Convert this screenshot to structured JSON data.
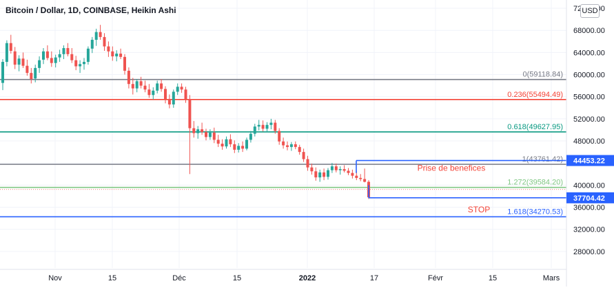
{
  "header": {
    "title": "Bitcoin / Dollar, 1D, COINBASE, Heikin Ashi",
    "currency": "USD"
  },
  "colors": {
    "up": "#26a69a",
    "down": "#ef5350",
    "grid": "#f0f3fa",
    "axis_text": "#131722",
    "fib_0": "#787b86",
    "fib_0236": "#f44336",
    "fib_0618": "#089981",
    "fib_1": "#787b86",
    "fib_1272": "#81c784",
    "fib_1618": "#2962ff",
    "tp_line": "#2962ff",
    "stop_line": "#2962ff",
    "label_bg": "#2962ff",
    "annotation_red": "#f44336"
  },
  "chart_data": {
    "type": "candlestick",
    "style": "Heikin Ashi",
    "x_ticks": [
      "Nov",
      "15",
      "Déc",
      "15",
      "2022",
      "17",
      "Févr",
      "15",
      "Mars"
    ],
    "y_ticks": [
      "72000.00",
      "68000.00",
      "64000.00",
      "60000.00",
      "56000.00",
      "52000.00",
      "48000.00",
      "44000.00",
      "40000.00",
      "36000.00",
      "32000.00",
      "28000.00"
    ],
    "y_range": [
      25000,
      73500
    ],
    "grid": true,
    "fib_levels": [
      {
        "label": "0(59118.84)",
        "value": 59118.84,
        "color_key": "fib_0"
      },
      {
        "label": "0.236(55494.49)",
        "value": 55494.49,
        "color_key": "fib_0236"
      },
      {
        "label": "0.618(49627.95)",
        "value": 49627.95,
        "color_key": "fib_0618"
      },
      {
        "label": "1(43761.42)",
        "value": 43761.42,
        "color_key": "fib_1"
      },
      {
        "label": "1.272(39584.20)",
        "value": 39584.2,
        "color_key": "fib_1272"
      },
      {
        "label": "1.618(34270.53)",
        "value": 34270.53,
        "color_key": "fib_1618"
      }
    ],
    "price_labels": [
      {
        "text": "44453.22",
        "value": 44453.22
      },
      {
        "text": "37704.42",
        "value": 37704.42
      }
    ],
    "annotations": [
      {
        "text": "Prise de benefices",
        "value": 43100
      },
      {
        "text": "STOP",
        "value": 35600
      }
    ],
    "candles": [
      [
        58500,
        62800,
        57200,
        62300
      ],
      [
        62300,
        66200,
        61500,
        65700
      ],
      [
        65700,
        67200,
        63800,
        64300
      ],
      [
        64200,
        65000,
        61000,
        61800
      ],
      [
        61800,
        63500,
        60600,
        62900
      ],
      [
        62900,
        64000,
        61200,
        61600
      ],
      [
        61600,
        62700,
        59800,
        60300
      ],
      [
        60300,
        61200,
        58400,
        59200
      ],
      [
        59300,
        61800,
        58600,
        61200
      ],
      [
        61200,
        63300,
        60300,
        62600
      ],
      [
        62700,
        64800,
        61900,
        64200
      ],
      [
        64200,
        65300,
        62600,
        63000
      ],
      [
        63000,
        64200,
        61400,
        62100
      ],
      [
        62100,
        63600,
        61300,
        63100
      ],
      [
        63100,
        64500,
        62300,
        63700
      ],
      [
        63700,
        65300,
        62800,
        64800
      ],
      [
        64800,
        65700,
        63300,
        63700
      ],
      [
        63700,
        64800,
        62100,
        62600
      ],
      [
        62600,
        63400,
        60800,
        61500
      ],
      [
        61500,
        62600,
        60300,
        61900
      ],
      [
        61900,
        63000,
        60900,
        62300
      ],
      [
        62300,
        65100,
        61800,
        64700
      ],
      [
        64700,
        66800,
        63900,
        66300
      ],
      [
        66300,
        68300,
        65200,
        67700
      ],
      [
        67700,
        69000,
        66300,
        66800
      ],
      [
        66800,
        67500,
        64300,
        65100
      ],
      [
        65100,
        66000,
        63200,
        64200
      ],
      [
        64200,
        65100,
        62500,
        63300
      ],
      [
        63300,
        64400,
        62400,
        63800
      ],
      [
        63800,
        64700,
        62800,
        63200
      ],
      [
        63200,
        63700,
        60000,
        60700
      ],
      [
        60700,
        61300,
        57500,
        58300
      ],
      [
        58300,
        59400,
        56400,
        57500
      ],
      [
        57500,
        59200,
        56800,
        58800
      ],
      [
        58800,
        59600,
        57500,
        58000
      ],
      [
        58000,
        58900,
        56800,
        57300
      ],
      [
        57300,
        58300,
        55800,
        56300
      ],
      [
        56300,
        57700,
        55500,
        57100
      ],
      [
        57100,
        58900,
        56600,
        58400
      ],
      [
        58400,
        59200,
        56900,
        57400
      ],
      [
        57400,
        57900,
        54800,
        55600
      ],
      [
        55600,
        56400,
        53900,
        54600
      ],
      [
        54600,
        57300,
        54000,
        56900
      ],
      [
        56900,
        58400,
        56300,
        57800
      ],
      [
        57800,
        58400,
        56700,
        57300
      ],
      [
        57300,
        57800,
        54900,
        55600
      ],
      [
        55600,
        56300,
        42000,
        50300
      ],
      [
        50300,
        51600,
        48600,
        49400
      ],
      [
        49400,
        50700,
        48400,
        50100
      ],
      [
        50100,
        51300,
        49100,
        49600
      ],
      [
        49600,
        50200,
        48100,
        48700
      ],
      [
        48700,
        50100,
        48200,
        49500
      ],
      [
        49500,
        50400,
        47600,
        48200
      ],
      [
        48200,
        49100,
        46900,
        47500
      ],
      [
        47500,
        48300,
        46400,
        47000
      ],
      [
        47000,
        48800,
        46600,
        48300
      ],
      [
        48300,
        49200,
        46900,
        47400
      ],
      [
        47400,
        48100,
        45800,
        46400
      ],
      [
        46400,
        47600,
        45900,
        47100
      ],
      [
        47100,
        47900,
        46000,
        46600
      ],
      [
        46600,
        48600,
        46300,
        48200
      ],
      [
        48200,
        49800,
        47700,
        49300
      ],
      [
        49300,
        51100,
        48800,
        50600
      ],
      [
        50600,
        51800,
        49900,
        50900
      ],
      [
        50900,
        51700,
        49700,
        50200
      ],
      [
        50200,
        51400,
        49600,
        50900
      ],
      [
        50900,
        52000,
        50100,
        51300
      ],
      [
        51300,
        51800,
        49300,
        49800
      ],
      [
        49800,
        50300,
        47300,
        47900
      ],
      [
        47900,
        48600,
        46600,
        47200
      ],
      [
        47200,
        47900,
        46300,
        46900
      ],
      [
        46900,
        47800,
        46200,
        47400
      ],
      [
        47400,
        47900,
        46500,
        46900
      ],
      [
        46900,
        47300,
        45500,
        46000
      ],
      [
        46000,
        46600,
        44200,
        44700
      ],
      [
        44700,
        45300,
        42600,
        43200
      ],
      [
        43200,
        43900,
        41900,
        42500
      ],
      [
        42500,
        43200,
        40800,
        41400
      ],
      [
        41400,
        42800,
        40600,
        42300
      ],
      [
        42300,
        43000,
        40900,
        41500
      ],
      [
        41500,
        43100,
        41000,
        42700
      ],
      [
        42700,
        44000,
        42200,
        43400
      ],
      [
        43400,
        43900,
        42300,
        42700
      ],
      [
        42700,
        43400,
        41900,
        42900
      ],
      [
        42900,
        43600,
        42300,
        42600
      ],
      [
        42600,
        43100,
        41800,
        42200
      ],
      [
        42200,
        42800,
        41200,
        41700
      ],
      [
        41700,
        42500,
        40900,
        41300
      ],
      [
        41300,
        42000,
        40700,
        41100
      ],
      [
        41100,
        43000,
        40500,
        40600
      ],
      [
        40600,
        40900,
        37500,
        37800
      ]
    ]
  }
}
